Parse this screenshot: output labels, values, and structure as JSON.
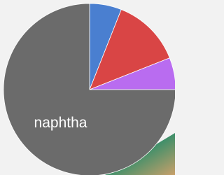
{
  "chart_data": {
    "type": "pie",
    "categories": [
      null,
      null,
      null,
      "naphtha"
    ],
    "values": [
      6,
      13,
      6,
      75
    ],
    "colors": [
      "#4a7fd0",
      "#d94545",
      "#b96cf0",
      "#6b6b6b"
    ]
  }
}
